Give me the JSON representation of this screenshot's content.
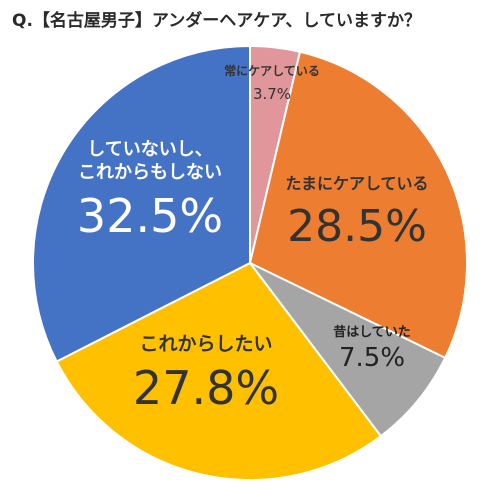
{
  "title": "Q.【名古屋男子】アンダーヘアケア、していますか？",
  "chart_data": {
    "type": "pie",
    "title": "Q.【名古屋男子】アンダーヘアケア、していますか？",
    "slices": [
      {
        "label": "常にケアしている",
        "value": 3.7,
        "display": "3.7%",
        "color": "#E0969A",
        "text_color": "#333333"
      },
      {
        "label": "たまにケアしている",
        "value": 28.5,
        "display": "28.5%",
        "color": "#ED7D31",
        "text_color": "#333333"
      },
      {
        "label": "昔はしていた",
        "value": 7.5,
        "display": "7.5%",
        "color": "#A5A5A5",
        "text_color": "#222222"
      },
      {
        "label": "これからしたい",
        "value": 27.8,
        "display": "27.8%",
        "color": "#FFC000",
        "text_color": "#333333"
      },
      {
        "label": "していないし、これからもしない",
        "label_lines": [
          "していないし、",
          "これからもしない"
        ],
        "value": 32.5,
        "display": "32.5%",
        "color": "#4472C4",
        "text_color": "#ffffff"
      }
    ],
    "start_angle_deg": 0,
    "direction": "clockwise",
    "legend": "none",
    "slice_border": "#ffffff"
  }
}
